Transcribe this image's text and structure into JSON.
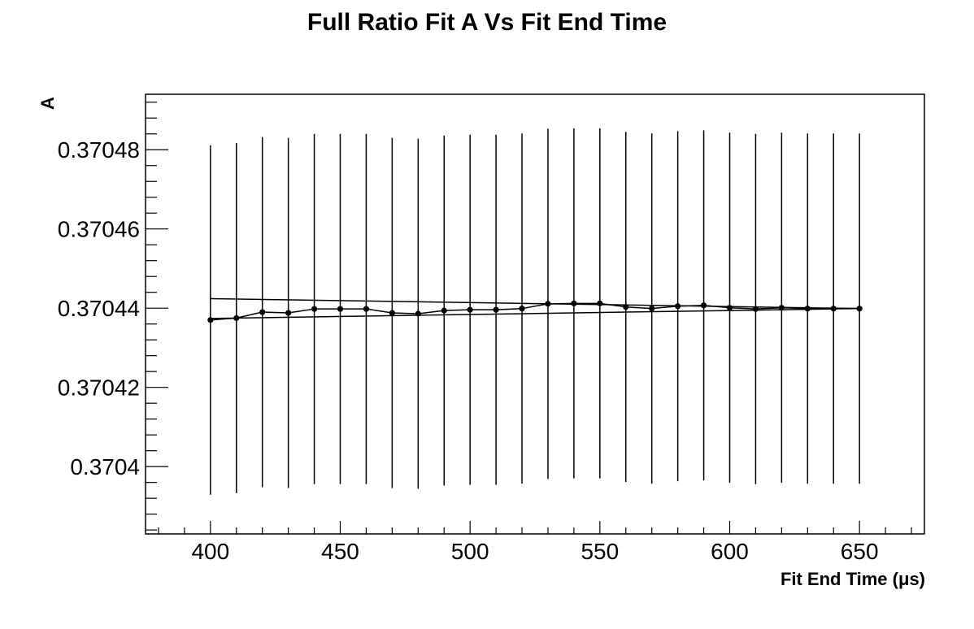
{
  "chart_data": {
    "type": "scatter",
    "title": "Full Ratio Fit A Vs Fit End Time",
    "xlabel": "Fit End Time (μs)",
    "ylabel": "A",
    "xlim": [
      375,
      675
    ],
    "ylim": [
      0.370383,
      0.370494
    ],
    "x_ticks": [
      400,
      450,
      500,
      550,
      600,
      650
    ],
    "x_tick_labels": [
      "400",
      "450",
      "500",
      "550",
      "600",
      "650"
    ],
    "y_ticks": [
      0.3704,
      0.37042,
      0.37044,
      0.37046,
      0.37048
    ],
    "y_tick_labels": [
      "0.3704",
      "0.37042",
      "0.37044",
      "0.37046",
      "0.37048"
    ],
    "grid": false,
    "legend": "none",
    "series": [
      {
        "x": [
          400,
          410,
          420,
          430,
          440,
          450,
          460,
          470,
          480,
          490,
          500,
          510,
          520,
          530,
          540,
          550,
          560,
          570,
          580,
          590,
          600,
          610,
          620,
          630,
          640,
          650
        ],
        "y": [
          0.370437,
          0.3704375,
          0.370439,
          0.3704388,
          0.3704398,
          0.3704398,
          0.3704398,
          0.3704388,
          0.3704386,
          0.3704394,
          0.3704396,
          0.3704396,
          0.3704399,
          0.3704411,
          0.3704412,
          0.3704412,
          0.3704403,
          0.3704399,
          0.3704405,
          0.3704407,
          0.3704401,
          0.3704398,
          0.3704401,
          0.3704399,
          0.3704399,
          0.3704399
        ],
        "y_err": [
          4.41e-05,
          4.42e-05,
          4.42e-05,
          4.42e-05,
          4.42e-05,
          4.42e-05,
          4.42e-05,
          4.42e-05,
          4.42e-05,
          4.42e-05,
          4.42e-05,
          4.42e-05,
          4.42e-05,
          4.42e-05,
          4.42e-05,
          4.42e-05,
          4.42e-05,
          4.42e-05,
          4.42e-05,
          4.42e-05,
          4.42e-05,
          4.42e-05,
          4.42e-05,
          4.42e-05,
          4.42e-05,
          4.42e-05
        ],
        "color": "#000000",
        "marker": "circle",
        "connected": true
      }
    ],
    "reference_lines": [
      {
        "from": [
          400,
          0.3704424
        ],
        "to": [
          650,
          0.3704399
        ],
        "color": "#000000"
      },
      {
        "from": [
          400,
          0.3704374
        ],
        "to": [
          650,
          0.3704399
        ],
        "color": "#000000"
      }
    ]
  }
}
